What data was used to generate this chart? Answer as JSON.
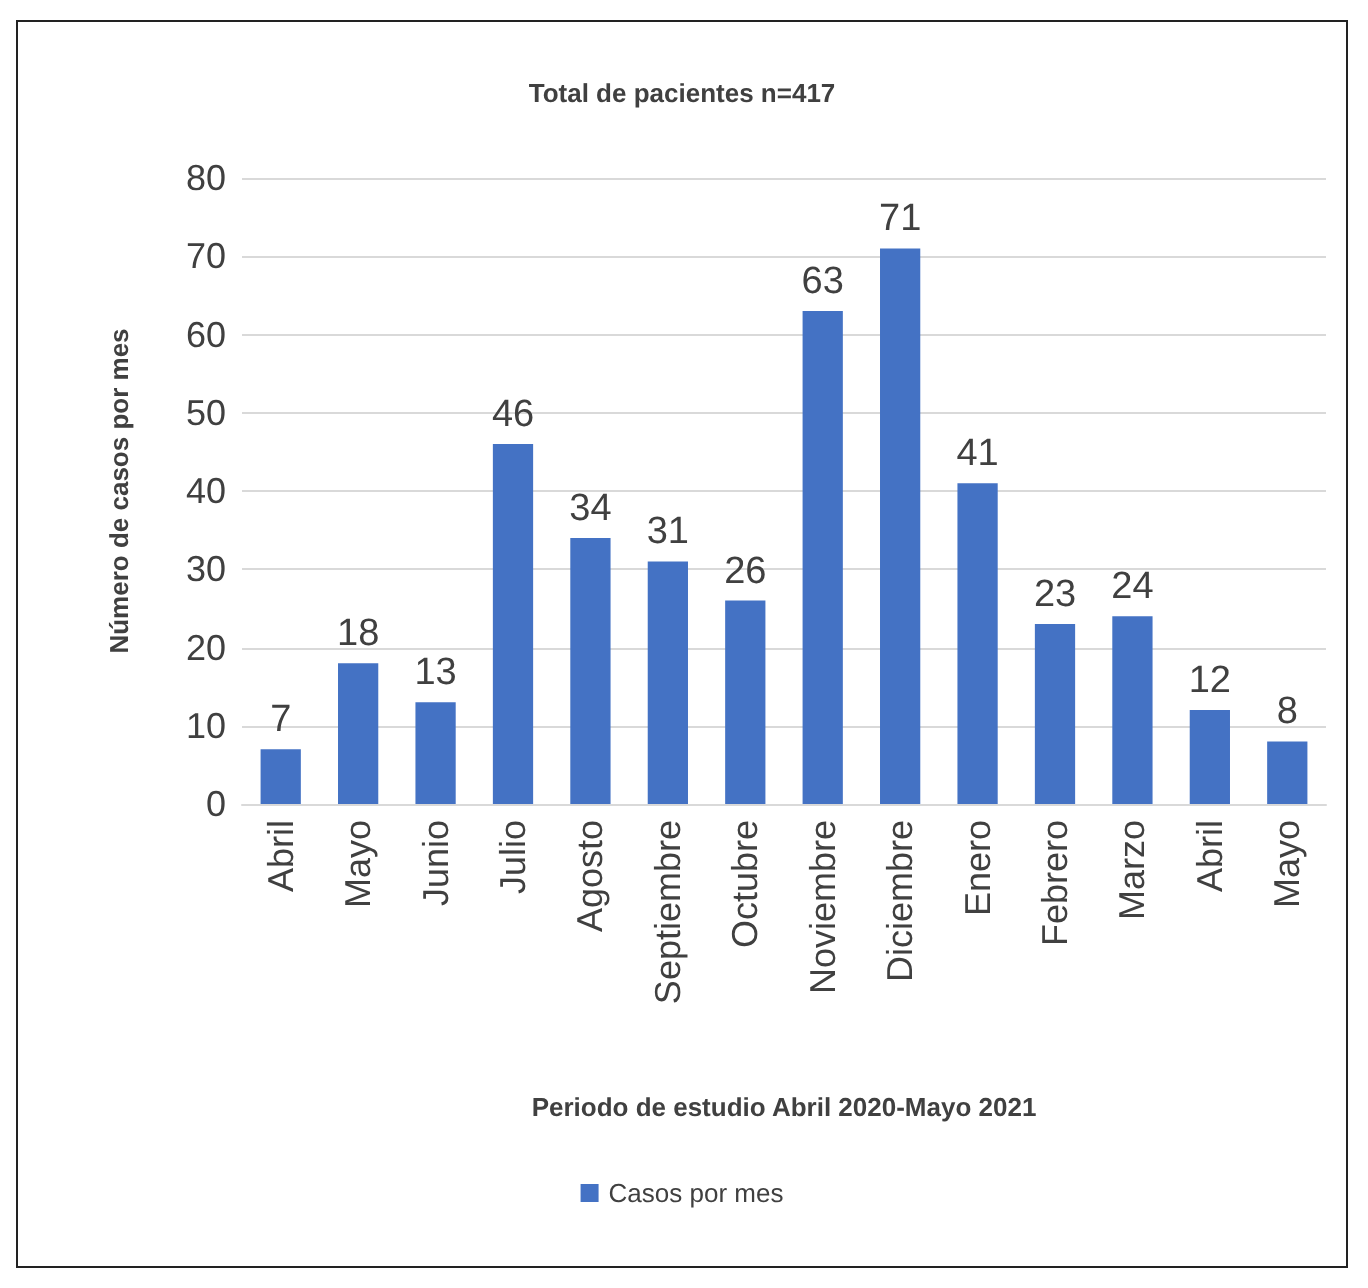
{
  "chart_data": {
    "type": "bar",
    "title": "Total de pacientes n=417",
    "xlabel": "Periodo de estudio Abril 2020-Mayo 2021",
    "ylabel": "Número de casos por mes",
    "categories": [
      "Abril",
      "Mayo",
      "Junio",
      "Julio",
      "Agosto",
      "Septiembre",
      "Octubre",
      "Noviembre",
      "Diciembre",
      "Enero",
      "Febrero",
      "Marzo",
      "Abril",
      "Mayo"
    ],
    "series": [
      {
        "name": "Casos por mes",
        "color": "#4472c4",
        "values": [
          7,
          18,
          13,
          46,
          34,
          31,
          26,
          63,
          71,
          41,
          23,
          24,
          12,
          8
        ]
      }
    ],
    "ylim": [
      0,
      80
    ],
    "yticks": [
      0,
      10,
      20,
      30,
      40,
      50,
      60,
      70,
      80
    ],
    "grid": "y",
    "legend": "bottom",
    "data_labels": true
  }
}
